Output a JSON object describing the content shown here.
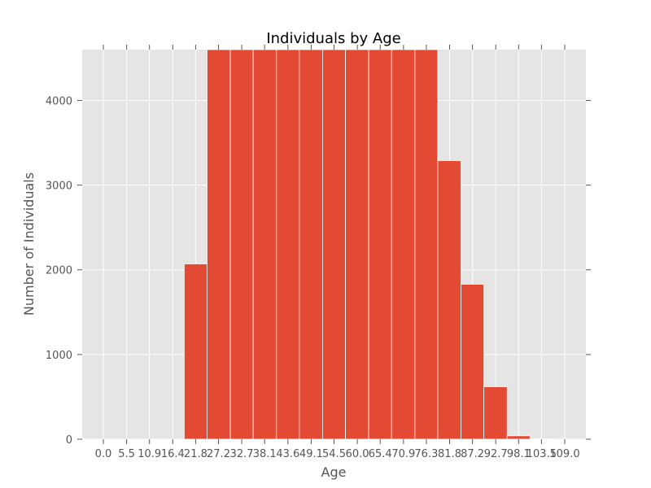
{
  "chart_data": {
    "type": "bar",
    "title": "Individuals by Age",
    "xlabel": "Age",
    "ylabel": "Number of Individuals",
    "xlim": [
      -5.0,
      114.0
    ],
    "ylim": [
      0,
      4600
    ],
    "x_ticks": [
      0.0,
      5.5,
      10.9,
      16.4,
      21.8,
      27.2,
      32.7,
      38.1,
      43.6,
      49.1,
      54.5,
      60.0,
      65.4,
      70.9,
      76.3,
      81.8,
      87.2,
      92.7,
      98.1,
      103.5,
      109.0
    ],
    "x_tick_labels": [
      "0.0",
      "5.5",
      "10.9",
      "16.4",
      "21.8",
      "27.2",
      "32.7",
      "38.1",
      "43.6",
      "49.1",
      "54.5",
      "60.0",
      "65.4",
      "70.9",
      "76.3",
      "81.8",
      "87.2",
      "92.7",
      "98.1",
      "103.5",
      "109.0"
    ],
    "y_ticks": [
      0,
      1000,
      2000,
      3000,
      4000
    ],
    "y_tick_labels": [
      "0",
      "1000",
      "2000",
      "3000",
      "4000"
    ],
    "bins": [
      {
        "start": 19.1,
        "end": 24.5,
        "value": 2070
      },
      {
        "start": 24.5,
        "end": 30.0,
        "value": 4600
      },
      {
        "start": 30.0,
        "end": 35.4,
        "value": 4600
      },
      {
        "start": 35.4,
        "end": 40.9,
        "value": 4600
      },
      {
        "start": 40.9,
        "end": 46.3,
        "value": 4600
      },
      {
        "start": 46.3,
        "end": 51.8,
        "value": 4600
      },
      {
        "start": 51.8,
        "end": 57.2,
        "value": 4600
      },
      {
        "start": 57.2,
        "end": 62.7,
        "value": 4600
      },
      {
        "start": 62.7,
        "end": 68.1,
        "value": 4600
      },
      {
        "start": 68.1,
        "end": 73.6,
        "value": 4600
      },
      {
        "start": 73.6,
        "end": 79.0,
        "value": 4600
      },
      {
        "start": 79.0,
        "end": 84.5,
        "value": 3290
      },
      {
        "start": 84.5,
        "end": 89.9,
        "value": 1830
      },
      {
        "start": 89.9,
        "end": 95.4,
        "value": 620
      },
      {
        "start": 95.4,
        "end": 100.8,
        "value": 40
      },
      {
        "start": 100.8,
        "end": 106.3,
        "value": 3
      }
    ],
    "bar_color": "#e24a33",
    "plot_background": "#e5e5e5",
    "grid": true,
    "grid_color": "#ffffff"
  }
}
